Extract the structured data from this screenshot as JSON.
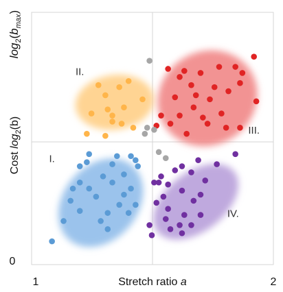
{
  "chart_data": {
    "type": "scatter",
    "xlabel_text": "Stretch ratio ",
    "xlabel_var": "a",
    "ylabel_text": "Cost ",
    "ylabel_var": "log",
    "ylabel_sub": "2",
    "ylabel_arg": "(b)",
    "y_top_label_log": "log",
    "y_top_label_sub": "2",
    "y_top_label_arg_open": "(",
    "y_top_label_b": "b",
    "y_top_label_max": "max",
    "y_top_label_arg_close": ")",
    "x_tick_labels": [
      "1",
      "2"
    ],
    "y_tick_labels": [
      "0"
    ],
    "xlim": [
      1,
      2
    ],
    "ylim": [
      0,
      1
    ],
    "grid": true,
    "quadrant_labels": [
      {
        "text": "I.",
        "x": 1.07,
        "y": 0.41
      },
      {
        "text": "II.",
        "x": 1.19,
        "y": 0.84
      },
      {
        "text": "III.",
        "x": 1.94,
        "y": 0.55
      },
      {
        "text": "IV.",
        "x": 1.85,
        "y": 0.14
      }
    ],
    "clusters": [
      {
        "color": "#5b9bd5",
        "halo": "#8ab9e9",
        "ellipse": {
          "cx": 1.28,
          "cy": 0.21,
          "rx": 0.16,
          "ry": 0.24,
          "rot": 40
        },
        "points": [
          [
            1.23,
            0.45
          ],
          [
            1.35,
            0.44
          ],
          [
            1.41,
            0.44
          ],
          [
            1.43,
            0.42
          ],
          [
            1.22,
            0.41
          ],
          [
            1.33,
            0.4
          ],
          [
            1.19,
            0.39
          ],
          [
            1.44,
            0.39
          ],
          [
            1.38,
            0.35
          ],
          [
            1.29,
            0.34
          ],
          [
            1.19,
            0.31
          ],
          [
            1.33,
            0.31
          ],
          [
            1.23,
            0.28
          ],
          [
            1.41,
            0.28
          ],
          [
            1.16,
            0.28
          ],
          [
            1.38,
            0.25
          ],
          [
            1.26,
            0.24
          ],
          [
            1.15,
            0.22
          ],
          [
            1.36,
            0.2
          ],
          [
            1.43,
            0.2
          ],
          [
            1.31,
            0.16
          ],
          [
            1.4,
            0.16
          ],
          [
            1.28,
            0.12
          ],
          [
            1.31,
            0.08
          ],
          [
            1.19,
            0.17
          ],
          [
            1.12,
            0.12
          ],
          [
            1.07,
            0.02
          ]
        ]
      },
      {
        "color": "#ffb54a",
        "halo": "#ffcc80",
        "ellipse": {
          "cx": 1.34,
          "cy": 0.705,
          "rx": 0.17,
          "ry": 0.135,
          "rot": -8
        },
        "points": [
          [
            1.27,
            0.79
          ],
          [
            1.4,
            0.81
          ],
          [
            1.36,
            0.78
          ],
          [
            1.3,
            0.74
          ],
          [
            1.31,
            0.67
          ],
          [
            1.46,
            0.72
          ],
          [
            1.38,
            0.68
          ],
          [
            1.33,
            0.64
          ],
          [
            1.24,
            0.65
          ],
          [
            1.37,
            0.6
          ],
          [
            1.42,
            0.58
          ],
          [
            1.22,
            0.55
          ],
          [
            1.3,
            0.54
          ],
          [
            1.33,
            0.61
          ]
        ]
      },
      {
        "color": "#e02424",
        "halo": "#f08080",
        "ellipse": {
          "cx": 1.74,
          "cy": 0.725,
          "rx": 0.22,
          "ry": 0.23,
          "rot": -33
        },
        "points": [
          [
            1.57,
            0.87
          ],
          [
            1.64,
            0.86
          ],
          [
            1.62,
            0.83
          ],
          [
            1.71,
            0.85
          ],
          [
            1.79,
            0.88
          ],
          [
            1.86,
            0.88
          ],
          [
            1.89,
            0.85
          ],
          [
            1.94,
            0.93
          ],
          [
            1.83,
            0.76
          ],
          [
            1.77,
            0.78
          ],
          [
            1.67,
            0.79
          ],
          [
            1.69,
            0.74
          ],
          [
            1.75,
            0.72
          ],
          [
            1.88,
            0.8
          ],
          [
            1.95,
            0.71
          ],
          [
            1.6,
            0.73
          ],
          [
            1.68,
            0.68
          ],
          [
            1.62,
            0.64
          ],
          [
            1.58,
            0.6
          ],
          [
            1.8,
            0.65
          ],
          [
            1.72,
            0.63
          ],
          [
            1.54,
            0.64
          ],
          [
            1.52,
            0.59
          ],
          [
            1.65,
            0.55
          ],
          [
            1.74,
            0.6
          ],
          [
            1.82,
            0.58
          ],
          [
            1.88,
            0.58
          ]
        ]
      },
      {
        "color": "#7030a0",
        "halo": "#b49ad8",
        "ellipse": {
          "cx": 1.69,
          "cy": 0.215,
          "rx": 0.21,
          "ry": 0.145,
          "rot": -38
        },
        "points": [
          [
            1.86,
            0.45
          ],
          [
            1.7,
            0.42
          ],
          [
            1.78,
            0.4
          ],
          [
            1.63,
            0.39
          ],
          [
            1.6,
            0.37
          ],
          [
            1.67,
            0.36
          ],
          [
            1.54,
            0.34
          ],
          [
            1.73,
            0.32
          ],
          [
            1.53,
            0.31
          ],
          [
            1.51,
            0.31
          ],
          [
            1.57,
            0.3
          ],
          [
            1.63,
            0.27
          ],
          [
            1.71,
            0.25
          ],
          [
            1.55,
            0.24
          ],
          [
            1.68,
            0.22
          ],
          [
            1.52,
            0.21
          ],
          [
            1.57,
            0.18
          ],
          [
            1.64,
            0.15
          ],
          [
            1.71,
            0.15
          ],
          [
            1.56,
            0.13
          ],
          [
            1.62,
            0.1
          ],
          [
            1.49,
            0.1
          ],
          [
            1.58,
            0.08
          ],
          [
            1.5,
            0.05
          ],
          [
            1.63,
            0.06
          ],
          [
            1.67,
            0.1
          ]
        ]
      },
      {
        "color": "#a6a6a6",
        "halo": "#d0d0d0",
        "ellipse": null,
        "points": [
          [
            1.49,
            0.91
          ],
          [
            1.48,
            0.58
          ],
          [
            1.47,
            0.55
          ],
          [
            1.51,
            0.57
          ],
          [
            1.53,
            0.46
          ],
          [
            1.56,
            0.43
          ]
        ]
      }
    ]
  }
}
